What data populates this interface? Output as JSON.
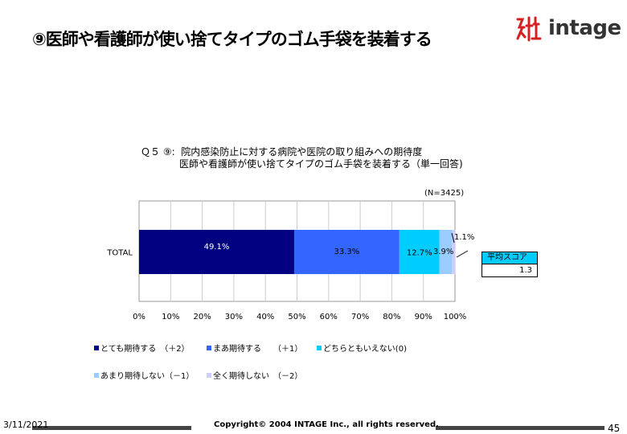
{
  "header": {
    "title": "⑨医師や看護師が使い捨てタイプのゴム手袋を装着する",
    "logo_text": "intage"
  },
  "chart_data": {
    "type": "bar",
    "orientation": "horizontal",
    "stacked": true,
    "title_lines": [
      "Ｑ５ ⑨:  院内感染防止に対する病院や医院の取り組みへの期待度",
      "　　　　医師や看護師が使い捨てタイプのゴム手袋を装着する（単一回答)"
    ],
    "n_label": "(N=3425)",
    "categories": [
      "TOTAL"
    ],
    "xlim": [
      0,
      100
    ],
    "x_ticks": [
      "0%",
      "10%",
      "20%",
      "30%",
      "40%",
      "50%",
      "60%",
      "70%",
      "80%",
      "90%",
      "100%"
    ],
    "grid": true,
    "legend_position": "bottom",
    "series": [
      {
        "name": "とても期待する　（＋2）",
        "values": [
          49.1
        ],
        "label": "49.1%",
        "color": "#000080"
      },
      {
        "name": "まあ期待する　　（＋1）",
        "values": [
          33.3
        ],
        "label": "33.3%",
        "color": "#3366ff"
      },
      {
        "name": "どちらともいえない(0)",
        "values": [
          12.7
        ],
        "label": "12.7%",
        "color": "#00ccff"
      },
      {
        "name": "あまり期待しない（－1）",
        "values": [
          3.9
        ],
        "label": "3.9%",
        "color": "#99ccff"
      },
      {
        "name": "全く期待しない　（－2）",
        "values": [
          1.1
        ],
        "label": "1.1%",
        "color": "#ccccff"
      }
    ],
    "average": {
      "label": "平均スコア",
      "value": "1.3"
    }
  },
  "footer": {
    "date": "3/11/2021",
    "copyright": "Copyright© 2004 INTAGE Inc., all rights reserved.",
    "page": "45"
  }
}
